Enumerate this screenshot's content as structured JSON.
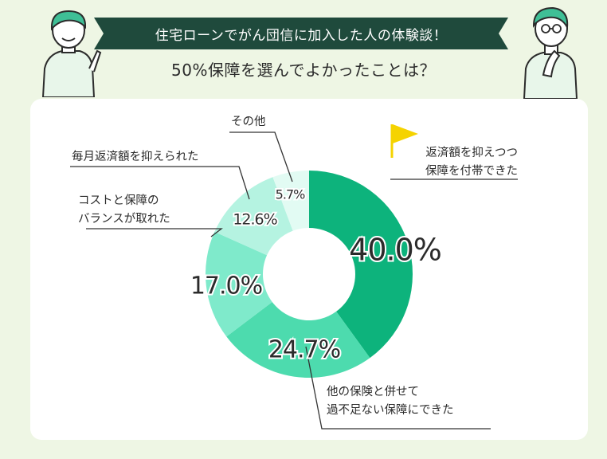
{
  "header": {
    "banner": "住宅ローンでがん団信に加入した人の体験談！",
    "subtitle": "50%保障を選んでよかったことは？"
  },
  "colors": {
    "background": "#eef6e4",
    "banner": "#1f4a3c",
    "flag": "#f5d300",
    "leader": "#333333"
  },
  "chart_data": {
    "type": "pie",
    "subtype": "donut",
    "start": "top, clockwise",
    "slices": [
      {
        "label": [
          "返済額を抑えつつ",
          "保障を付帯できた"
        ],
        "value": 40.0,
        "value_label": "40.0%",
        "color": "#0db37c",
        "highlight": true
      },
      {
        "label": [
          "他の保険と併せて",
          "過不足ない保障にできた"
        ],
        "value": 24.7,
        "value_label": "24.7%",
        "color": "#4ddbae"
      },
      {
        "label": [
          "コストと保障の",
          "バランスが取れた"
        ],
        "value": 17.0,
        "value_label": "17.0%",
        "color": "#7feacb"
      },
      {
        "label": [
          "毎月返済額を抑えられた"
        ],
        "value": 12.6,
        "value_label": "12.6%",
        "color": "#b5f3e1"
      },
      {
        "label": [
          "その他"
        ],
        "value": 5.7,
        "value_label": "5.7%",
        "color": "#e2fbf3"
      }
    ]
  }
}
